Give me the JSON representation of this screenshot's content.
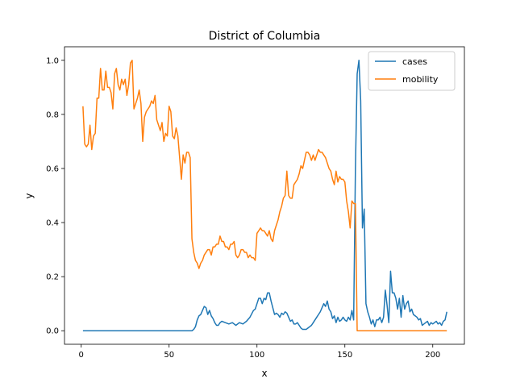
{
  "chart_data": {
    "type": "line",
    "title": "District of Columbia",
    "xlabel": "x",
    "ylabel": "y",
    "xlim": [
      -9.5,
      218
    ],
    "ylim": [
      -0.05,
      1.05
    ],
    "xticks": [
      0,
      50,
      100,
      150,
      200
    ],
    "yticks": [
      0.0,
      0.2,
      0.4,
      0.6,
      0.8,
      1.0
    ],
    "grid": false,
    "legend_position": "top-right",
    "series": [
      {
        "name": "cases",
        "color": "#1f77b4",
        "points": [
          [
            1,
            0
          ],
          [
            10,
            0
          ],
          [
            20,
            0
          ],
          [
            30,
            0
          ],
          [
            40,
            0
          ],
          [
            50,
            0
          ],
          [
            60,
            0
          ],
          [
            63,
            0
          ],
          [
            64,
            0.005
          ],
          [
            65,
            0.015
          ],
          [
            66,
            0.04
          ],
          [
            67,
            0.055
          ],
          [
            68,
            0.06
          ],
          [
            69,
            0.075
          ],
          [
            70,
            0.09
          ],
          [
            71,
            0.085
          ],
          [
            72,
            0.06
          ],
          [
            73,
            0.075
          ],
          [
            74,
            0.055
          ],
          [
            75,
            0.045
          ],
          [
            76,
            0.03
          ],
          [
            77,
            0.02
          ],
          [
            78,
            0.02
          ],
          [
            79,
            0.03
          ],
          [
            80,
            0.035
          ],
          [
            82,
            0.03
          ],
          [
            84,
            0.025
          ],
          [
            86,
            0.03
          ],
          [
            88,
            0.02
          ],
          [
            90,
            0.03
          ],
          [
            92,
            0.025
          ],
          [
            94,
            0.035
          ],
          [
            96,
            0.05
          ],
          [
            98,
            0.075
          ],
          [
            99,
            0.08
          ],
          [
            100,
            0.1
          ],
          [
            101,
            0.12
          ],
          [
            102,
            0.12
          ],
          [
            103,
            0.1
          ],
          [
            104,
            0.12
          ],
          [
            105,
            0.115
          ],
          [
            106,
            0.14
          ],
          [
            107,
            0.14
          ],
          [
            108,
            0.11
          ],
          [
            109,
            0.085
          ],
          [
            110,
            0.06
          ],
          [
            111,
            0.065
          ],
          [
            112,
            0.06
          ],
          [
            113,
            0.05
          ],
          [
            114,
            0.065
          ],
          [
            115,
            0.06
          ],
          [
            116,
            0.07
          ],
          [
            117,
            0.065
          ],
          [
            118,
            0.05
          ],
          [
            119,
            0.035
          ],
          [
            120,
            0.04
          ],
          [
            121,
            0.025
          ],
          [
            122,
            0.025
          ],
          [
            123,
            0.03
          ],
          [
            124,
            0.02
          ],
          [
            125,
            0.01
          ],
          [
            126,
            0.005
          ],
          [
            127,
            0.005
          ],
          [
            128,
            0.005
          ],
          [
            129,
            0.01
          ],
          [
            130,
            0.015
          ],
          [
            131,
            0.02
          ],
          [
            132,
            0.03
          ],
          [
            133,
            0.04
          ],
          [
            134,
            0.05
          ],
          [
            135,
            0.06
          ],
          [
            136,
            0.07
          ],
          [
            137,
            0.085
          ],
          [
            138,
            0.1
          ],
          [
            139,
            0.09
          ],
          [
            140,
            0.11
          ],
          [
            141,
            0.08
          ],
          [
            142,
            0.07
          ],
          [
            143,
            0.045
          ],
          [
            144,
            0.055
          ],
          [
            145,
            0.03
          ],
          [
            146,
            0.05
          ],
          [
            147,
            0.035
          ],
          [
            148,
            0.04
          ],
          [
            149,
            0.05
          ],
          [
            150,
            0.04
          ],
          [
            151,
            0.035
          ],
          [
            152,
            0.05
          ],
          [
            153,
            0.04
          ],
          [
            154,
            0.075
          ],
          [
            155,
            0.04
          ],
          [
            156,
            0.6
          ],
          [
            157,
            0.95
          ],
          [
            158,
            1.0
          ],
          [
            159,
            0.85
          ],
          [
            160,
            0.38
          ],
          [
            161,
            0.45
          ],
          [
            162,
            0.1
          ],
          [
            163,
            0.07
          ],
          [
            164,
            0.05
          ],
          [
            165,
            0.025
          ],
          [
            166,
            0.04
          ],
          [
            167,
            0.015
          ],
          [
            168,
            0.04
          ],
          [
            169,
            0.04
          ],
          [
            170,
            0.05
          ],
          [
            171,
            0.03
          ],
          [
            172,
            0.05
          ],
          [
            173,
            0.15
          ],
          [
            174,
            0.095
          ],
          [
            175,
            0.03
          ],
          [
            176,
            0.22
          ],
          [
            177,
            0.14
          ],
          [
            178,
            0.14
          ],
          [
            179,
            0.12
          ],
          [
            180,
            0.08
          ],
          [
            181,
            0.12
          ],
          [
            182,
            0.05
          ],
          [
            183,
            0.13
          ],
          [
            184,
            0.08
          ],
          [
            185,
            0.1
          ],
          [
            186,
            0.11
          ],
          [
            187,
            0.07
          ],
          [
            188,
            0.08
          ],
          [
            189,
            0.06
          ],
          [
            190,
            0.055
          ],
          [
            191,
            0.05
          ],
          [
            192,
            0.04
          ],
          [
            193,
            0.045
          ],
          [
            194,
            0.02
          ],
          [
            195,
            0.025
          ],
          [
            196,
            0.03
          ],
          [
            197,
            0.035
          ],
          [
            198,
            0.02
          ],
          [
            199,
            0.03
          ],
          [
            200,
            0.025
          ],
          [
            201,
            0.03
          ],
          [
            202,
            0.035
          ],
          [
            203,
            0.025
          ],
          [
            204,
            0.03
          ],
          [
            205,
            0.02
          ],
          [
            206,
            0.035
          ],
          [
            207,
            0.04
          ],
          [
            208,
            0.07
          ]
        ]
      },
      {
        "name": "mobility",
        "color": "#ff7f0e",
        "points": [
          [
            1,
            0.83
          ],
          [
            2,
            0.69
          ],
          [
            3,
            0.68
          ],
          [
            4,
            0.69
          ],
          [
            5,
            0.76
          ],
          [
            6,
            0.67
          ],
          [
            7,
            0.72
          ],
          [
            8,
            0.73
          ],
          [
            9,
            0.86
          ],
          [
            10,
            0.86
          ],
          [
            11,
            0.97
          ],
          [
            12,
            0.89
          ],
          [
            13,
            0.89
          ],
          [
            14,
            0.96
          ],
          [
            15,
            0.9
          ],
          [
            16,
            0.9
          ],
          [
            17,
            0.88
          ],
          [
            18,
            0.82
          ],
          [
            19,
            0.95
          ],
          [
            20,
            0.97
          ],
          [
            21,
            0.91
          ],
          [
            22,
            0.89
          ],
          [
            23,
            0.93
          ],
          [
            24,
            0.91
          ],
          [
            25,
            0.93
          ],
          [
            26,
            0.87
          ],
          [
            27,
            0.91
          ],
          [
            28,
            0.99
          ],
          [
            29,
            1.0
          ],
          [
            30,
            0.82
          ],
          [
            31,
            0.84
          ],
          [
            32,
            0.86
          ],
          [
            33,
            0.89
          ],
          [
            34,
            0.84
          ],
          [
            35,
            0.7
          ],
          [
            36,
            0.79
          ],
          [
            37,
            0.81
          ],
          [
            38,
            0.82
          ],
          [
            39,
            0.83
          ],
          [
            40,
            0.85
          ],
          [
            41,
            0.84
          ],
          [
            42,
            0.87
          ],
          [
            43,
            0.78
          ],
          [
            44,
            0.76
          ],
          [
            45,
            0.74
          ],
          [
            46,
            0.77
          ],
          [
            47,
            0.7
          ],
          [
            48,
            0.73
          ],
          [
            49,
            0.72
          ],
          [
            50,
            0.83
          ],
          [
            51,
            0.81
          ],
          [
            52,
            0.72
          ],
          [
            53,
            0.71
          ],
          [
            54,
            0.75
          ],
          [
            55,
            0.72
          ],
          [
            56,
            0.64
          ],
          [
            57,
            0.56
          ],
          [
            58,
            0.65
          ],
          [
            59,
            0.62
          ],
          [
            60,
            0.66
          ],
          [
            61,
            0.66
          ],
          [
            62,
            0.64
          ],
          [
            63,
            0.34
          ],
          [
            64,
            0.29
          ],
          [
            65,
            0.26
          ],
          [
            66,
            0.25
          ],
          [
            67,
            0.23
          ],
          [
            68,
            0.25
          ],
          [
            69,
            0.26
          ],
          [
            70,
            0.28
          ],
          [
            71,
            0.29
          ],
          [
            72,
            0.3
          ],
          [
            73,
            0.3
          ],
          [
            74,
            0.28
          ],
          [
            75,
            0.31
          ],
          [
            76,
            0.31
          ],
          [
            77,
            0.32
          ],
          [
            78,
            0.32
          ],
          [
            79,
            0.35
          ],
          [
            80,
            0.33
          ],
          [
            81,
            0.33
          ],
          [
            82,
            0.31
          ],
          [
            83,
            0.31
          ],
          [
            84,
            0.3
          ],
          [
            85,
            0.32
          ],
          [
            86,
            0.32
          ],
          [
            87,
            0.33
          ],
          [
            88,
            0.28
          ],
          [
            89,
            0.27
          ],
          [
            90,
            0.28
          ],
          [
            91,
            0.3
          ],
          [
            92,
            0.3
          ],
          [
            93,
            0.29
          ],
          [
            94,
            0.29
          ],
          [
            95,
            0.27
          ],
          [
            96,
            0.28
          ],
          [
            97,
            0.27
          ],
          [
            98,
            0.27
          ],
          [
            99,
            0.26
          ],
          [
            100,
            0.36
          ],
          [
            101,
            0.37
          ],
          [
            102,
            0.38
          ],
          [
            103,
            0.37
          ],
          [
            104,
            0.37
          ],
          [
            105,
            0.36
          ],
          [
            106,
            0.35
          ],
          [
            107,
            0.37
          ],
          [
            108,
            0.34
          ],
          [
            109,
            0.33
          ],
          [
            110,
            0.37
          ],
          [
            111,
            0.39
          ],
          [
            112,
            0.41
          ],
          [
            113,
            0.44
          ],
          [
            114,
            0.46
          ],
          [
            115,
            0.49
          ],
          [
            116,
            0.5
          ],
          [
            117,
            0.59
          ],
          [
            118,
            0.5
          ],
          [
            119,
            0.49
          ],
          [
            120,
            0.49
          ],
          [
            121,
            0.54
          ],
          [
            122,
            0.55
          ],
          [
            123,
            0.56
          ],
          [
            124,
            0.58
          ],
          [
            125,
            0.61
          ],
          [
            126,
            0.6
          ],
          [
            127,
            0.63
          ],
          [
            128,
            0.66
          ],
          [
            129,
            0.66
          ],
          [
            130,
            0.65
          ],
          [
            131,
            0.63
          ],
          [
            132,
            0.65
          ],
          [
            133,
            0.63
          ],
          [
            134,
            0.65
          ],
          [
            135,
            0.67
          ],
          [
            136,
            0.66
          ],
          [
            137,
            0.66
          ],
          [
            138,
            0.65
          ],
          [
            139,
            0.64
          ],
          [
            140,
            0.62
          ],
          [
            141,
            0.6
          ],
          [
            142,
            0.59
          ],
          [
            143,
            0.56
          ],
          [
            144,
            0.54
          ],
          [
            145,
            0.59
          ],
          [
            146,
            0.55
          ],
          [
            147,
            0.57
          ],
          [
            148,
            0.56
          ],
          [
            149,
            0.56
          ],
          [
            150,
            0.55
          ],
          [
            151,
            0.48
          ],
          [
            152,
            0.44
          ],
          [
            153,
            0.38
          ],
          [
            154,
            0.48
          ],
          [
            155,
            0.47
          ],
          [
            156,
            0.47
          ],
          [
            157,
            0
          ],
          [
            160,
            0
          ],
          [
            170,
            0
          ],
          [
            180,
            0
          ],
          [
            190,
            0
          ],
          [
            200,
            0
          ],
          [
            208,
            0
          ]
        ]
      }
    ]
  }
}
